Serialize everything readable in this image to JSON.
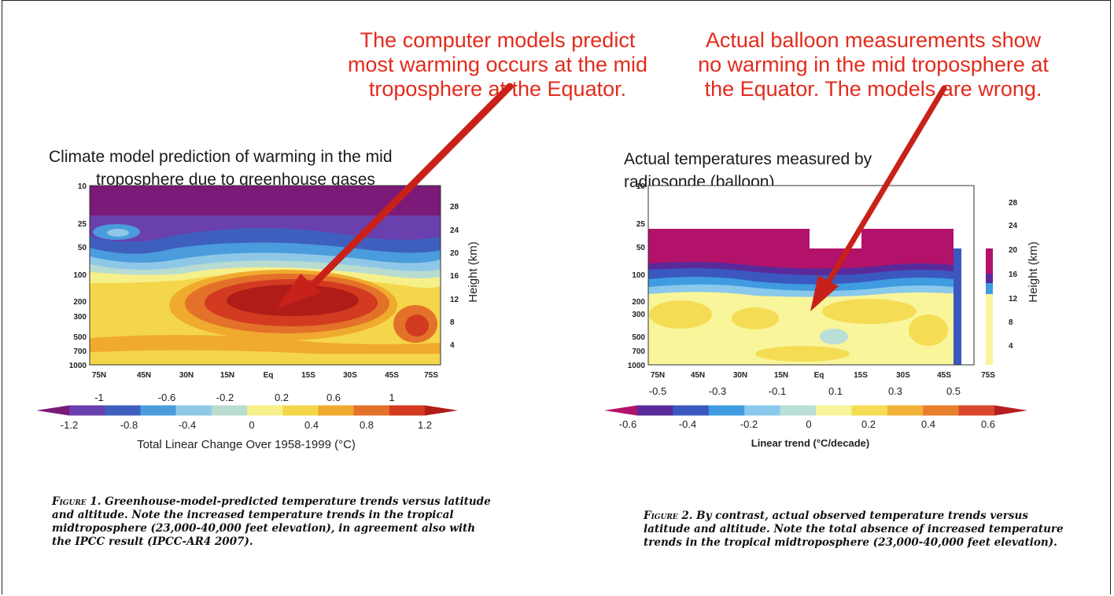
{
  "annotations": {
    "left_note": [
      "The computer models predict",
      "most warming occurs at the mid",
      "troposphere at the Equator."
    ],
    "right_note": [
      "Actual balloon measurements show",
      "no warming in the mid troposphere at",
      "the Equator. The models are wrong."
    ]
  },
  "colors": {
    "annotation": "#e32b1c",
    "arrow": "#c8211a",
    "scale": [
      "#7b1a78",
      "#6a3fae",
      "#3f5fbe",
      "#4a9cdc",
      "#8fc8e6",
      "#b9dcd0",
      "#f6f08a",
      "#f4d64a",
      "#f0aa2e",
      "#e4712a",
      "#d33b21",
      "#b01c18"
    ],
    "scale_right": [
      "#b3126a",
      "#5a2a9a",
      "#3a58c0",
      "#3f9ce0",
      "#8ac9ec",
      "#b9dfd6",
      "#f8f59a",
      "#f5dc55",
      "#f2b23a",
      "#e87f2b",
      "#d8472a",
      "#b51e22"
    ]
  },
  "chart_data": [
    {
      "type": "heatmap",
      "title": "Climate model prediction of warming in the mid troposphere due to greenhouse gases",
      "title_lines": [
        "Climate model prediction of warming in the mid",
        "troposphere due to greenhouse gases"
      ],
      "x_ticks": [
        "75N",
        "45N",
        "30N",
        "15N",
        "Eq",
        "15S",
        "30S",
        "45S",
        "75S"
      ],
      "y_ticks": [
        "10",
        "25",
        "50",
        "100",
        "200",
        "300",
        "500",
        "700",
        "1000"
      ],
      "y_right_ticks": [
        "28",
        "24",
        "20",
        "16",
        "12",
        "8",
        "4"
      ],
      "y_right_label": "Height (km)",
      "colorbar_top": [
        "-1",
        "-0.6",
        "-0.2",
        "0.2",
        "0.6",
        "1"
      ],
      "colorbar_bottom": [
        "-1.2",
        "-0.8",
        "-0.4",
        "0",
        "0.4",
        "0.8",
        "1.2"
      ],
      "xlabel": "Total Linear Change Over 1958-1999 (°C)",
      "zlim": [
        -1.2,
        1.2
      ],
      "features": [
        {
          "region": "stratosphere 10-50 hPa, all latitudes",
          "value": -1.2
        },
        {
          "region": "30N-Eq-30S, 200-300 hPa (mid troposphere)",
          "value": 1.0
        },
        {
          "region": "45S, 500 hPa",
          "value": 0.8
        },
        {
          "region": "surface 700-1000 hPa",
          "value": 0.4
        }
      ]
    },
    {
      "type": "heatmap",
      "title": "Actual temperatures measured by radiosonde (balloon)",
      "title_lines": [
        "Actual temperatures measured by",
        "radiosonde (balloon)"
      ],
      "x_ticks": [
        "75N",
        "45N",
        "30N",
        "15N",
        "Eq",
        "15S",
        "30S",
        "45S",
        "75S"
      ],
      "y_ticks": [
        "10",
        "25",
        "50",
        "100",
        "200",
        "300",
        "500",
        "700",
        "1000"
      ],
      "y_right_ticks": [
        "28",
        "24",
        "20",
        "16",
        "12",
        "8",
        "4"
      ],
      "y_right_label": "Height (km)",
      "colorbar_top": [
        "-0.5",
        "-0.3",
        "-0.1",
        "0.1",
        "0.3",
        "0.5"
      ],
      "colorbar_bottom": [
        "-0.6",
        "-0.4",
        "-0.2",
        "0",
        "0.2",
        "0.4",
        "0.6"
      ],
      "xlabel": "Linear trend (°C/decade)",
      "zlim": [
        -0.6,
        0.6
      ],
      "features": [
        {
          "region": "stratosphere 25-100 hPa",
          "value": -0.6
        },
        {
          "region": "mid troposphere 200-500 hPa at Equator",
          "value": 0.1
        },
        {
          "region": "surface 700-1000 hPa",
          "value": 0.1
        }
      ]
    }
  ],
  "captions": {
    "left_label": "Figure 1.",
    "left_text": "Greenhouse-model-predicted temperature trends versus latitude and altitude. Note the increased temperature trends in the tropical midtroposphere (23,000-40,000 feet elevation), in agreement also with the IPCC result (IPCC-AR4 2007).",
    "right_label": "Figure 2.",
    "right_text": "By contrast, actual observed temperature trends versus latitude and altitude. Note the total absence of increased temperature trends in the tropical midtroposphere (23,000-40,000 feet elevation)."
  }
}
